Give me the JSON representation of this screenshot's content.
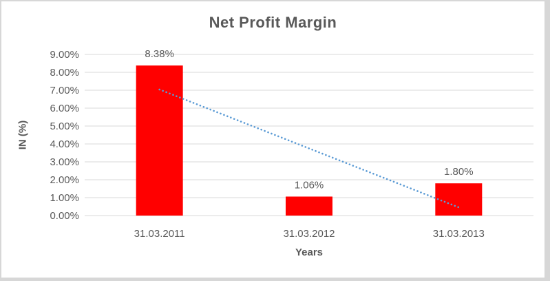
{
  "window": {
    "canvas_background": "#ffffff",
    "frame_color": "#d7d7d7"
  },
  "chart_data": {
    "type": "bar",
    "title": "Net Profit Margin",
    "xlabel": "Years",
    "ylabel": "IN (%)",
    "categories": [
      "31.03.2011",
      "31.03.2012",
      "31.03.2013"
    ],
    "values": [
      8.38,
      1.06,
      1.8
    ],
    "data_labels": [
      "8.38%",
      "1.06%",
      "1.80%"
    ],
    "y_ticks": [
      "0.00%",
      "1.00%",
      "2.00%",
      "3.00%",
      "4.00%",
      "5.00%",
      "6.00%",
      "7.00%",
      "8.00%",
      "9.00%"
    ],
    "ylim": [
      0,
      9
    ],
    "y_step": 1,
    "grid": true,
    "legend": "none",
    "bar_color": "#ff0000",
    "gridline_color": "#d9d9d9",
    "text_color": "#595959",
    "trendline": {
      "type": "linear",
      "style": "dotted",
      "color": "#5b9bd5",
      "start_value": 7.04,
      "end_value": 0.46
    }
  }
}
